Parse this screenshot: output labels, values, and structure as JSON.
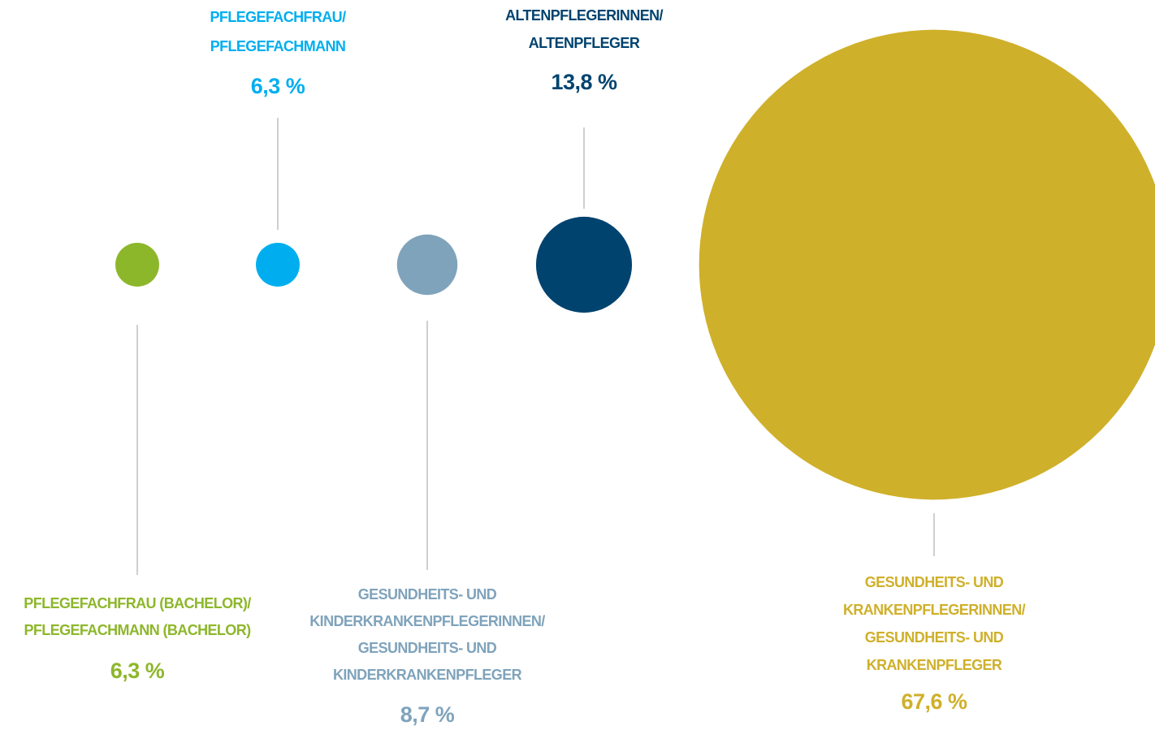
{
  "chart_data": {
    "type": "bubble",
    "categories": [
      [
        "PFLEGEFACHFRAU (BACHELOR)/",
        "PFLEGEFACHMANN (BACHELOR)"
      ],
      [
        "PFLEGEFACHFRAU/",
        "PFLEGEFACHMANN"
      ],
      [
        "GESUNDHEITS- UND",
        "KINDERKRANKENPFLEGERINNEN/",
        "GESUNDHEITS- UND",
        "KINDERKRANKENPFLEGER"
      ],
      [
        "ALTENPFLEGERINNEN/",
        "ALTENPFLEGER"
      ],
      [
        "GESUNDHEITS- UND",
        "KRANKENPFLEGERINNEN/",
        "GESUNDHEITS- UND",
        "KRANKENPFLEGER"
      ]
    ],
    "values": [
      6.3,
      6.3,
      8.7,
      13.8,
      67.6
    ],
    "value_labels": [
      "6,3 %",
      "6,3 %",
      "8,7 %",
      "13,8 %",
      "67,6 %"
    ],
    "colors": [
      "#8db72a",
      "#00aeef",
      "#7fa3bb",
      "#00436f",
      "#cfb02a"
    ]
  }
}
